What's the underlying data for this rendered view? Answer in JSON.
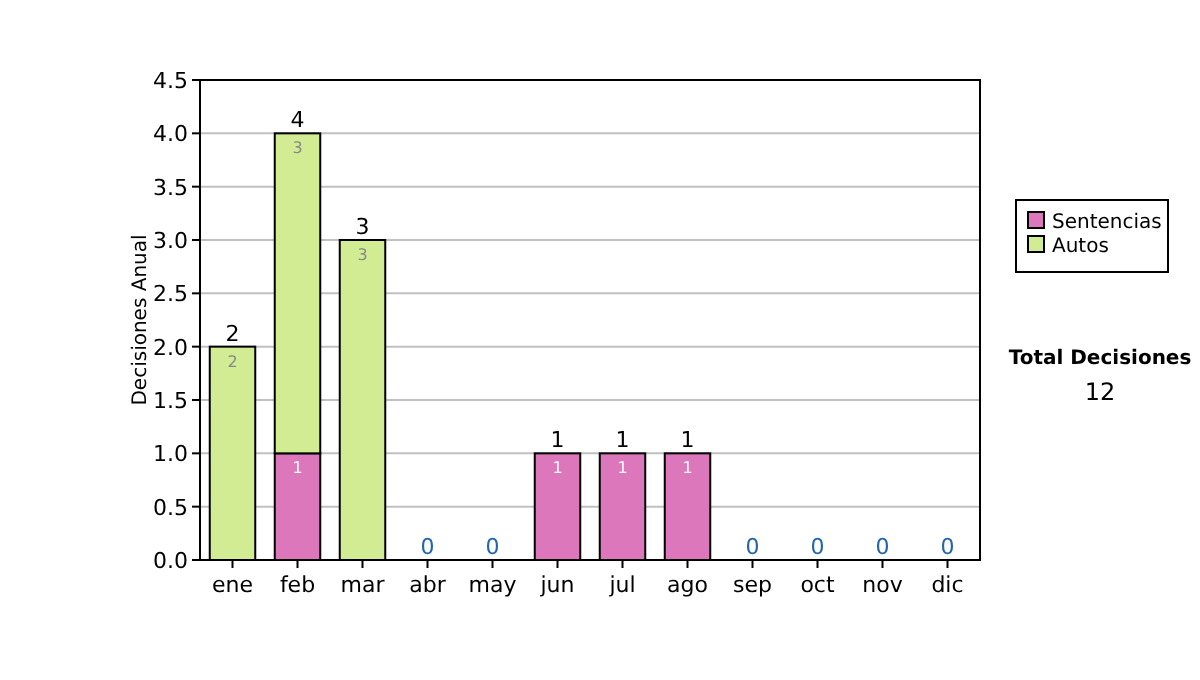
{
  "chart_data": {
    "type": "bar",
    "stacked": true,
    "ylabel": "Decisiones Anual",
    "categories": [
      "ene",
      "feb",
      "mar",
      "abr",
      "may",
      "jun",
      "jul",
      "ago",
      "sep",
      "oct",
      "nov",
      "dic"
    ],
    "series": [
      {
        "name": "Sentencias",
        "color": "#dd77bb",
        "values": [
          0,
          1,
          0,
          0,
          0,
          1,
          1,
          1,
          0,
          0,
          0,
          0
        ],
        "value_labels": [
          null,
          "1",
          null,
          null,
          null,
          "1",
          "1",
          "1",
          null,
          null,
          null,
          null
        ]
      },
      {
        "name": "Autos",
        "color": "#d2ec94",
        "values": [
          2,
          3,
          3,
          0,
          0,
          0,
          0,
          0,
          0,
          0,
          0,
          0
        ],
        "value_labels": [
          "2",
          "3",
          "3",
          null,
          null,
          null,
          null,
          null,
          null,
          null,
          null,
          null
        ]
      }
    ],
    "totals": [
      "2",
      "4",
      "3",
      "0",
      "0",
      "1",
      "1",
      "1",
      "0",
      "0",
      "0",
      "0"
    ],
    "ylim": [
      0,
      4.5
    ],
    "yticks": [
      {
        "value": 0,
        "label": "0.0"
      },
      {
        "value": 0.5,
        "label": "0.5"
      },
      {
        "value": 1,
        "label": "1.0"
      },
      {
        "value": 1.5,
        "label": "1.5"
      },
      {
        "value": 2,
        "label": "2.0"
      },
      {
        "value": 2.5,
        "label": "2.5"
      },
      {
        "value": 3,
        "label": "3.0"
      },
      {
        "value": 3.5,
        "label": "3.5"
      },
      {
        "value": 4,
        "label": "4.0"
      },
      {
        "value": 4.5,
        "label": "4.5"
      }
    ],
    "grid": "y",
    "legend": "right",
    "annotations": [
      "Total Decisiones",
      "12"
    ]
  }
}
